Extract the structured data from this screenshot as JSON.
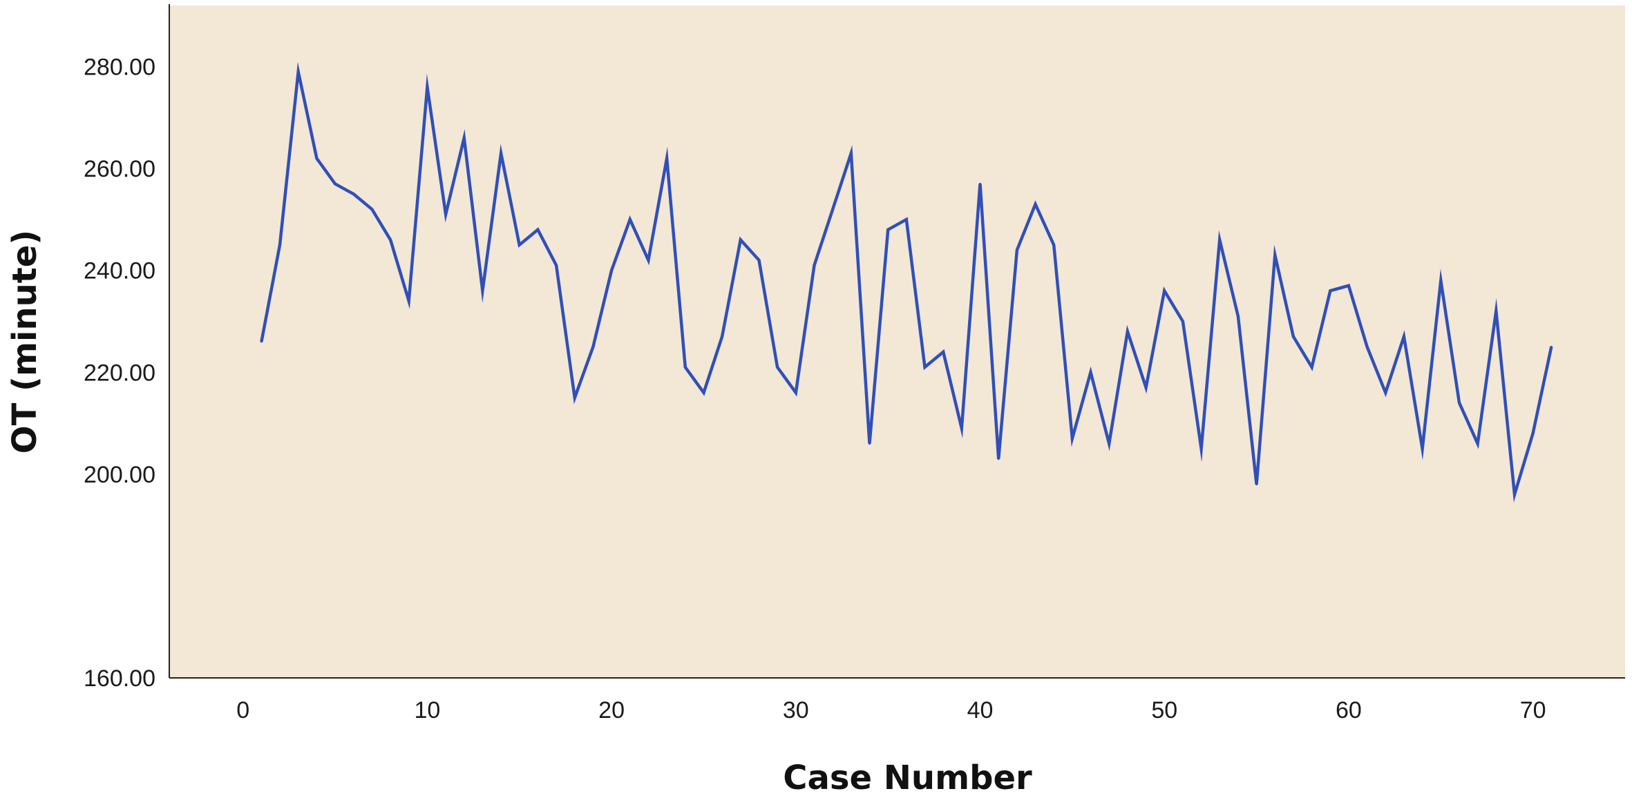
{
  "chart_data": {
    "type": "line",
    "title": "",
    "xlabel": "Case Number",
    "ylabel": "OT (minute)",
    "xlim": [
      -4,
      75
    ],
    "ylim": [
      160,
      292
    ],
    "x_ticks": [
      0,
      10,
      20,
      30,
      40,
      50,
      60,
      70
    ],
    "x_tick_labels": [
      "0",
      "10",
      "20",
      "30",
      "40",
      "50",
      "60",
      "70"
    ],
    "y_ticks": [
      160,
      200,
      220,
      240,
      260,
      280
    ],
    "y_tick_labels": [
      "160.00",
      "200.00",
      "220.00",
      "240.00",
      "260.00",
      "280.00"
    ],
    "grid": false,
    "legend": "none",
    "colors": {
      "plot_background": "#f3e7d6",
      "line": "#3050b8",
      "axis": "#222222"
    },
    "series": [
      {
        "x": [
          1,
          2,
          3,
          4,
          5,
          6,
          7,
          8,
          9,
          10,
          11,
          12,
          13,
          14,
          15,
          16,
          17,
          18,
          19,
          20,
          21,
          22,
          23,
          24,
          25,
          26,
          27,
          28,
          29,
          30,
          31,
          32,
          33,
          34,
          35,
          36,
          37,
          38,
          39,
          40,
          41,
          42,
          43,
          44,
          45,
          46,
          47,
          48,
          49,
          50,
          51,
          52,
          53,
          54,
          55,
          56,
          57,
          58,
          59,
          60,
          61,
          62,
          63,
          64,
          65,
          66,
          67,
          68,
          69,
          70,
          71
        ],
        "values": [
          226,
          245,
          279,
          262,
          257,
          255,
          252,
          246,
          234,
          276,
          251,
          266,
          236,
          263,
          245,
          248,
          241,
          215,
          225,
          240,
          250,
          242,
          262,
          221,
          216,
          227,
          246,
          242,
          221,
          216,
          241,
          252,
          263,
          206,
          248,
          250,
          221,
          224,
          209,
          257,
          203,
          244,
          253,
          245,
          207,
          220,
          206,
          228,
          217,
          236,
          230,
          205,
          246,
          231,
          198,
          243,
          227,
          221,
          236,
          237,
          225,
          216,
          227,
          205,
          238,
          214,
          206,
          232,
          196,
          208,
          225
        ]
      }
    ]
  }
}
